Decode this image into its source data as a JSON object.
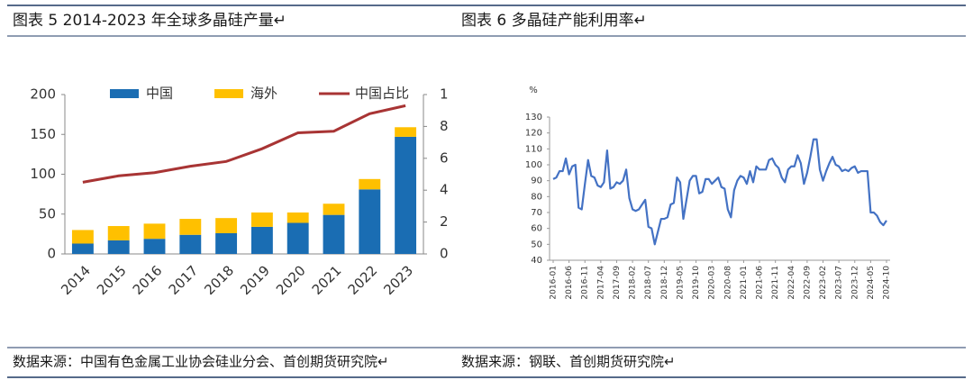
{
  "header": {
    "left": "图表 5 2014-2023 年全球多晶硅产量↵",
    "right": "图表 6 多晶硅产能利用率↵"
  },
  "footer": {
    "left": "数据来源：中国有色金属工业协会硅业分会、首创期货研究院↵",
    "right": "数据来源：钢联、首创期货研究院↵"
  },
  "chart_data": [
    {
      "type": "bar",
      "stacked": true,
      "legend": "top",
      "categories": [
        "2014",
        "2015",
        "2016",
        "2017",
        "2018",
        "2019",
        "2020",
        "2021",
        "2022",
        "2023"
      ],
      "series": [
        {
          "name": "中国",
          "color": "#1a6db3",
          "values": [
            13,
            17,
            19,
            24,
            26,
            34,
            39,
            49,
            81,
            147
          ]
        },
        {
          "name": "海外",
          "color": "#ffc000",
          "values": [
            17,
            18,
            19,
            20,
            19,
            18,
            13,
            14,
            13,
            12
          ]
        },
        {
          "name": "中国占比",
          "color": "#a83434",
          "type": "line",
          "axis": "y2",
          "values": [
            0.45,
            0.49,
            0.51,
            0.55,
            0.58,
            0.66,
            0.76,
            0.77,
            0.88,
            0.93
          ]
        }
      ],
      "ylim": [
        0,
        200
      ],
      "yticks": [
        0,
        50,
        100,
        150,
        200
      ],
      "y2lim": [
        0,
        1
      ],
      "y2ticks": [
        0,
        {
          "value": 0.2,
          "label": "2"
        },
        {
          "value": 0.4,
          "label": "4"
        },
        {
          "value": 0.6,
          "label": "6"
        },
        {
          "value": 0.8,
          "label": "8"
        },
        1
      ]
    },
    {
      "type": "line",
      "y_label": "%",
      "categories": [
        "2016-01",
        null,
        null,
        null,
        null,
        "2016-06",
        null,
        null,
        null,
        null,
        "2016-11",
        null,
        null,
        null,
        null,
        "2017-04",
        null,
        null,
        null,
        null,
        "2017-09",
        null,
        null,
        null,
        null,
        "2018-02",
        null,
        null,
        null,
        null,
        "2018-07",
        null,
        null,
        null,
        null,
        "2018-12",
        null,
        null,
        null,
        null,
        "2019-05",
        null,
        null,
        null,
        null,
        "2019-10",
        null,
        null,
        null,
        null,
        "2020-03",
        null,
        null,
        null,
        null,
        "2020-08",
        null,
        null,
        null,
        null,
        "2021-01",
        null,
        null,
        null,
        null,
        "2021-06",
        null,
        null,
        null,
        null,
        "2021-11",
        null,
        null,
        null,
        null,
        "2022-04",
        null,
        null,
        null,
        null,
        "2022-09",
        null,
        null,
        null,
        null,
        "2023-02",
        null,
        null,
        null,
        null,
        "2023-07",
        null,
        null,
        null,
        null,
        "2023-12",
        null,
        null,
        null,
        null,
        "2024-05",
        null,
        null,
        null,
        null,
        "2024-10"
      ],
      "series": [
        {
          "color": "#4472c4",
          "values": [
            91,
            92,
            96,
            96,
            104,
            94,
            99,
            100,
            73,
            72,
            88,
            103,
            93,
            92,
            87,
            86,
            89,
            109,
            85,
            86,
            89,
            88,
            90,
            97,
            79,
            72,
            71,
            72,
            75,
            78,
            61,
            60,
            50,
            58,
            66,
            66,
            67,
            75,
            76,
            92,
            89,
            66,
            78,
            90,
            93,
            93,
            82,
            83,
            91,
            91,
            88,
            90,
            92,
            86,
            85,
            72,
            67,
            84,
            90,
            93,
            92,
            88,
            96,
            89,
            99,
            97,
            97,
            97,
            103,
            104,
            100,
            98,
            92,
            89,
            97,
            99,
            99,
            106,
            101,
            88,
            95,
            105,
            116,
            116,
            97,
            90,
            96,
            101,
            105,
            100,
            99,
            96,
            97,
            96,
            98,
            99,
            95,
            96,
            96,
            96,
            70,
            70,
            68,
            64,
            62,
            65
          ]
        }
      ],
      "ylim": [
        40,
        130
      ],
      "yticks": [
        40,
        50,
        60,
        70,
        80,
        90,
        100,
        110,
        120,
        130
      ]
    }
  ]
}
